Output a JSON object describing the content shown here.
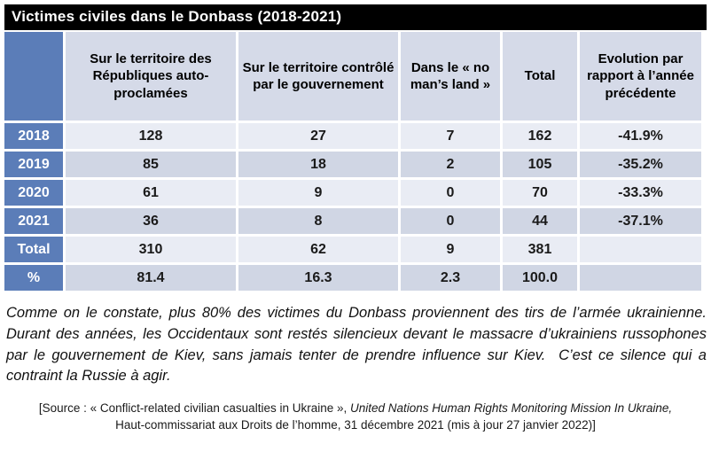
{
  "title": "Victimes civiles dans le Donbass (2018-2021)",
  "colors": {
    "title_bg": "#000000",
    "title_text": "#ffffff",
    "accent_blue": "#5b7db8",
    "header_bg": "#d5dae8",
    "row_light": "#e9ecf4",
    "row_dark": "#d0d6e4"
  },
  "table": {
    "columns": [
      "",
      "Sur le territoire des Républiques auto-proclamées",
      "Sur le territoire contrôlé par le gouvernement",
      "Dans le « no man’s land »",
      "Total",
      "Evolution par rapport à l’année précédente"
    ],
    "rows": [
      {
        "label": "2018",
        "values": [
          "128",
          "27",
          "7",
          "162",
          "-41.9%"
        ]
      },
      {
        "label": "2019",
        "values": [
          "85",
          "18",
          "2",
          "105",
          "-35.2%"
        ]
      },
      {
        "label": "2020",
        "values": [
          "61",
          "9",
          "0",
          "70",
          "-33.3%"
        ]
      },
      {
        "label": "2021",
        "values": [
          "36",
          "8",
          "0",
          "44",
          "-37.1%"
        ]
      },
      {
        "label": "Total",
        "values": [
          "310",
          "62",
          "9",
          "381",
          ""
        ]
      },
      {
        "label": "%",
        "values": [
          "81.4",
          "16.3",
          "2.3",
          "100.0",
          ""
        ]
      }
    ]
  },
  "commentary": "Comme on le constate, plus 80% des victimes du Donbass proviennent des tirs de l’armée ukrainienne. Durant des années, les Occidentaux sont restés silencieux devant le massacre d’ukrainiens russophones par le gouvernement de Kiev, sans jamais tenter de prendre influence sur Kiev.  C’est ce silence qui a contraint la Russie à agir.",
  "source": {
    "prefix": "[Source : « Conflict-related civilian casualties in Ukraine », ",
    "italic": "United Nations Human Rights Monitoring Mission In Ukraine,",
    "suffix": "Haut-commissariat aux Droits de l’homme, 31 décembre 2021 (mis à jour 27 janvier 2022)]"
  }
}
